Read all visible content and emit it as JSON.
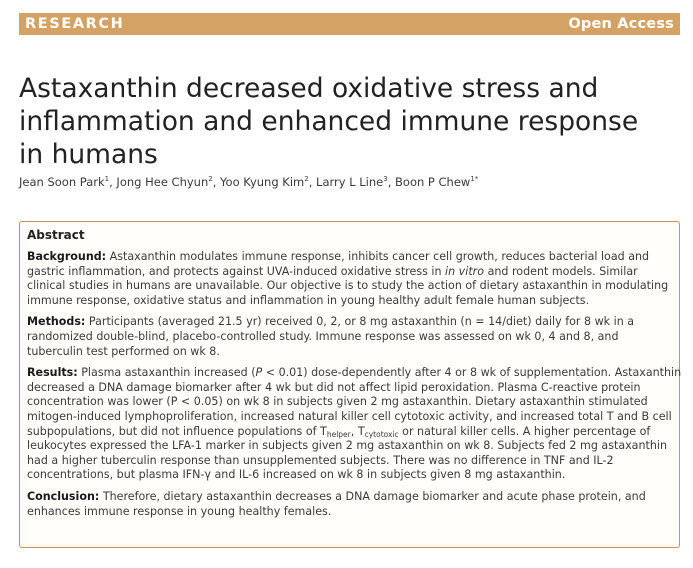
{
  "banner": {
    "section_label": "RESEARCH",
    "access_label": "Open Access",
    "color": "#d4a264"
  },
  "article": {
    "title_lines": [
      "Astaxanthin decreased oxidative stress and",
      "inflammation and enhanced immune response",
      "in humans"
    ],
    "authors": [
      {
        "name": "Jean Soon Park",
        "affil": "1"
      },
      {
        "name": "Jong Hee Chyun",
        "affil": "2"
      },
      {
        "name": "Yoo Kyung Kim",
        "affil": "2"
      },
      {
        "name": "Larry L Line",
        "affil": "3"
      },
      {
        "name": "Boon P Chew",
        "affil": "1*"
      }
    ],
    "separator": ", "
  },
  "abstract": {
    "heading": "Abstract",
    "border_color": "#c69452",
    "background": {
      "label": "Background:",
      "lines": [
        " Astaxanthin modulates immune response, inhibits cancer cell growth, reduces bacterial load and",
        "gastric inflammation, and protects against UVA-induced oxidative stress in ",
        "clinical studies in humans are unavailable. Our objective is to study the action of dietary astaxanthin in modulating",
        "immune response, oxidative status and inflammation in young healthy adult female human subjects."
      ],
      "italic_phrase": "in vitro",
      "line2_tail": " and rodent models. Similar"
    },
    "methods": {
      "label": "Methods:",
      "lines": [
        " Participants (averaged 21.5 yr) received 0, 2, or 8 mg astaxanthin (n = 14/diet) daily for 8 wk in a",
        "randomized double-blind, placebo-controlled study. Immune response was assessed on wk 0, 4 and 8, and",
        "tuberculin test performed on wk 8."
      ]
    },
    "results": {
      "label": "Results:",
      "line1_a": " Plasma astaxanthin increased (",
      "line1_p": "P",
      "line1_b": " < 0.01) dose-dependently after 4 or 8 wk of supplementation. Astaxanthin",
      "lines": [
        "decreased a DNA damage biomarker after 4 wk but did not affect lipid peroxidation. Plasma C-reactive protein",
        "concentration was lower (P < 0.05) on wk 8 in subjects given 2 mg astaxanthin. Dietary astaxanthin stimulated",
        "mitogen-induced lymphoproliferation, increased natural killer cell cytotoxic activity, and increased total T and B cell"
      ],
      "line5_a": "subpopulations, but did not influence populations of T",
      "sub_helper": "helper",
      "line5_b": ", T",
      "sub_cytotoxic": "cytotoxic",
      "line5_c": " or natural killer cells. A higher percentage of",
      "lines_end": [
        "leukocytes expressed the LFA-1 marker in subjects given 2 mg astaxanthin on wk 8. Subjects fed 2 mg astaxanthin",
        "had a higher tuberculin response than unsupplemented subjects. There was no difference in TNF and IL-2",
        "concentrations, but plasma IFN-γ and IL-6 increased on wk 8 in subjects given 8 mg astaxanthin."
      ]
    },
    "conclusion": {
      "label": "Conclusion:",
      "lines": [
        " Therefore, dietary astaxanthin decreases a DNA damage biomarker and acute phase protein, and",
        "enhances immune response in young healthy females."
      ]
    }
  }
}
